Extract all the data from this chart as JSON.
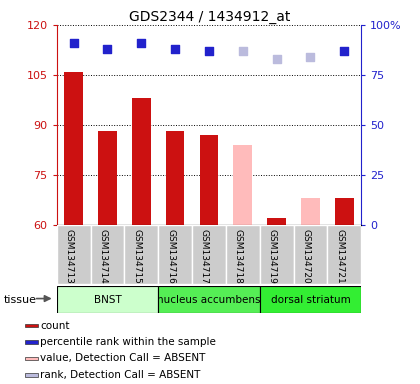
{
  "title": "GDS2344 / 1434912_at",
  "samples": [
    "GSM134713",
    "GSM134714",
    "GSM134715",
    "GSM134716",
    "GSM134717",
    "GSM134718",
    "GSM134719",
    "GSM134720",
    "GSM134721"
  ],
  "count_values": [
    106,
    88,
    98,
    88,
    87,
    null,
    62,
    null,
    68
  ],
  "count_absent": [
    null,
    null,
    null,
    null,
    null,
    84,
    null,
    68,
    null
  ],
  "rank_values": [
    91,
    88,
    91,
    88,
    87,
    null,
    null,
    null,
    87
  ],
  "rank_absent": [
    null,
    null,
    null,
    null,
    null,
    87,
    83,
    84,
    null
  ],
  "ylim_left": [
    60,
    120
  ],
  "ylim_right": [
    0,
    100
  ],
  "yticks_left": [
    60,
    75,
    90,
    105,
    120
  ],
  "yticks_right": [
    0,
    25,
    50,
    75,
    100
  ],
  "tissue_groups": [
    {
      "label": "BNST",
      "start": 0,
      "end": 3,
      "color": "#ccffcc"
    },
    {
      "label": "nucleus accumbens",
      "start": 3,
      "end": 6,
      "color": "#55ee55"
    },
    {
      "label": "dorsal striatum",
      "start": 6,
      "end": 9,
      "color": "#33ee33"
    }
  ],
  "color_count": "#cc1111",
  "color_rank": "#2222cc",
  "color_count_absent": "#ffbbbb",
  "color_rank_absent": "#bbbbdd",
  "dot_size": 35,
  "grid_color": "black",
  "grid_linestyle": "dotted",
  "plot_bg": "white",
  "sample_box_color": "#cccccc",
  "legend_items": [
    {
      "color": "#cc1111",
      "label": "count"
    },
    {
      "color": "#2222cc",
      "label": "percentile rank within the sample"
    },
    {
      "color": "#ffbbbb",
      "label": "value, Detection Call = ABSENT"
    },
    {
      "color": "#bbbbdd",
      "label": "rank, Detection Call = ABSENT"
    }
  ]
}
